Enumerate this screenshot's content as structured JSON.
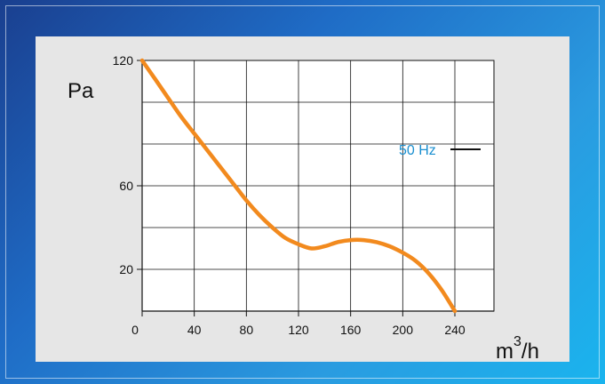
{
  "chart_data": {
    "type": "line",
    "y_unit": "Pa",
    "x_unit_base": "m",
    "x_unit_exp": "3",
    "x_unit_tail": "/h",
    "x_ticks": [
      "0",
      "40",
      "80",
      "120",
      "160",
      "200",
      "240"
    ],
    "y_ticks": [
      "120",
      "60",
      "20"
    ],
    "xlim": [
      0,
      270
    ],
    "ylim": [
      0,
      120
    ],
    "x_grid": [
      0,
      40,
      80,
      120,
      160,
      200,
      240,
      270
    ],
    "y_grid": [
      0,
      20,
      40,
      60,
      80,
      100,
      120
    ],
    "grid": true,
    "legend_position": "right",
    "series": [
      {
        "name": "50 Hz",
        "color": "#f28a1e",
        "points": [
          [
            0,
            120
          ],
          [
            10,
            111
          ],
          [
            20,
            102
          ],
          [
            30,
            93
          ],
          [
            40,
            85
          ],
          [
            50,
            77
          ],
          [
            60,
            69
          ],
          [
            70,
            61
          ],
          [
            80,
            53
          ],
          [
            90,
            46
          ],
          [
            100,
            40
          ],
          [
            110,
            35
          ],
          [
            120,
            32
          ],
          [
            130,
            30
          ],
          [
            140,
            31
          ],
          [
            150,
            33
          ],
          [
            160,
            34
          ],
          [
            170,
            34
          ],
          [
            180,
            33
          ],
          [
            190,
            31
          ],
          [
            200,
            28
          ],
          [
            210,
            24
          ],
          [
            220,
            18
          ],
          [
            230,
            10
          ],
          [
            240,
            0
          ]
        ]
      }
    ],
    "legend_line_color": "#111111"
  }
}
